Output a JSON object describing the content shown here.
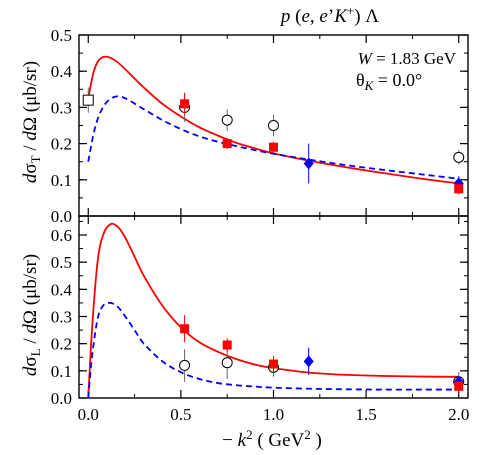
{
  "chart_data": {
    "type": "line",
    "title": "p (e, e'K⁺) Λ",
    "xlabel": "−k² ( GeV² )",
    "xlim": [
      -0.05,
      2.05
    ],
    "xticks": [
      "0.0",
      "0.5",
      "1.0",
      "1.5",
      "2.0"
    ],
    "annotations": [
      "W = 1.83 GeV",
      "θK = 0.0°"
    ],
    "panels": [
      {
        "id": "sigma_T",
        "ylabel": "dσT / dΩ (μb/sr)",
        "ylim": [
          0.0,
          0.5
        ],
        "yticks": [
          "0.0",
          "0.1",
          "0.2",
          "0.3",
          "0.4",
          "0.5"
        ],
        "curves": [
          {
            "style": "solid",
            "color": "#ff0000",
            "x": [
              0.0,
              0.03,
              0.06,
              0.1,
              0.15,
              0.2,
              0.3,
              0.4,
              0.5,
              0.6,
              0.7,
              0.8,
              0.9,
              1.0,
              1.2,
              1.4,
              1.6,
              1.8,
              2.0
            ],
            "y": [
              0.325,
              0.4,
              0.432,
              0.44,
              0.428,
              0.405,
              0.355,
              0.31,
              0.275,
              0.245,
              0.222,
              0.202,
              0.187,
              0.173,
              0.152,
              0.134,
              0.118,
              0.103,
              0.09
            ]
          },
          {
            "style": "dashed",
            "color": "#0000ff",
            "x": [
              0.0,
              0.03,
              0.06,
              0.1,
              0.15,
              0.2,
              0.3,
              0.4,
              0.5,
              0.6,
              0.7,
              0.8,
              0.9,
              1.0,
              1.2,
              1.4,
              1.6,
              1.8,
              2.0
            ],
            "y": [
              0.15,
              0.23,
              0.28,
              0.315,
              0.33,
              0.325,
              0.295,
              0.265,
              0.24,
              0.22,
              0.205,
              0.193,
              0.182,
              0.172,
              0.155,
              0.14,
              0.127,
              0.115,
              0.103
            ]
          }
        ],
        "points": [
          {
            "marker": "open-square",
            "color": "#000000",
            "x": 0.0,
            "y": 0.32,
            "err": 0.035
          },
          {
            "marker": "open-circle",
            "color": "#000000",
            "x": 0.52,
            "y": 0.3,
            "err": 0.04
          },
          {
            "marker": "filled-square",
            "color": "#ff0000",
            "x": 0.52,
            "y": 0.31,
            "err": 0.03
          },
          {
            "marker": "open-circle",
            "color": "#000000",
            "x": 0.75,
            "y": 0.265,
            "err": 0.03
          },
          {
            "marker": "filled-square",
            "color": "#ff0000",
            "x": 0.75,
            "y": 0.2,
            "err": 0.015
          },
          {
            "marker": "open-circle",
            "color": "#000000",
            "x": 1.0,
            "y": 0.25,
            "err": 0.03
          },
          {
            "marker": "filled-square",
            "color": "#ff0000",
            "x": 1.0,
            "y": 0.19,
            "err": 0.015
          },
          {
            "marker": "filled-diamond",
            "color": "#0000ff",
            "x": 1.19,
            "y": 0.145,
            "err": 0.055
          },
          {
            "marker": "open-circle",
            "color": "#000000",
            "x": 2.0,
            "y": 0.162,
            "err": 0.02
          },
          {
            "marker": "filled-diamond",
            "color": "#0000ff",
            "x": 2.0,
            "y": 0.09,
            "err": 0.02
          },
          {
            "marker": "filled-square",
            "color": "#ff0000",
            "x": 2.0,
            "y": 0.075,
            "err": 0.015
          }
        ]
      },
      {
        "id": "sigma_L",
        "ylabel": "dσL / dΩ (μb/sr)",
        "ylim": [
          0.0,
          0.67
        ],
        "yticks": [
          "0.0",
          "0.1",
          "0.2",
          "0.3",
          "0.4",
          "0.5",
          "0.6"
        ],
        "curves": [
          {
            "style": "solid",
            "color": "#ff0000",
            "x": [
              0.0,
              0.02,
              0.05,
              0.08,
              0.12,
              0.16,
              0.2,
              0.25,
              0.3,
              0.4,
              0.5,
              0.6,
              0.7,
              0.8,
              0.9,
              1.0,
              1.2,
              1.4,
              1.6,
              1.8,
              2.0
            ],
            "y": [
              0.0,
              0.25,
              0.5,
              0.6,
              0.64,
              0.63,
              0.59,
              0.52,
              0.45,
              0.34,
              0.26,
              0.205,
              0.17,
              0.143,
              0.123,
              0.11,
              0.093,
              0.085,
              0.081,
              0.079,
              0.078
            ]
          },
          {
            "style": "dashed",
            "color": "#0000ff",
            "x": [
              0.0,
              0.02,
              0.05,
              0.08,
              0.12,
              0.16,
              0.2,
              0.25,
              0.3,
              0.4,
              0.5,
              0.6,
              0.7,
              0.8,
              0.9,
              1.0,
              1.2,
              1.4,
              1.6,
              1.8,
              2.0
            ],
            "y": [
              0.0,
              0.15,
              0.29,
              0.34,
              0.35,
              0.335,
              0.3,
              0.25,
              0.2,
              0.135,
              0.095,
              0.07,
              0.055,
              0.047,
              0.042,
              0.038,
              0.034,
              0.032,
              0.031,
              0.031,
              0.031
            ]
          }
        ],
        "points": [
          {
            "marker": "open-circle",
            "color": "#000000",
            "x": 0.52,
            "y": 0.12,
            "err": 0.06
          },
          {
            "marker": "filled-square",
            "color": "#ff0000",
            "x": 0.52,
            "y": 0.255,
            "err": 0.05
          },
          {
            "marker": "open-circle",
            "color": "#000000",
            "x": 0.75,
            "y": 0.13,
            "err": 0.06
          },
          {
            "marker": "filled-square",
            "color": "#ff0000",
            "x": 0.75,
            "y": 0.195,
            "err": 0.025
          },
          {
            "marker": "open-circle",
            "color": "#000000",
            "x": 1.0,
            "y": 0.113,
            "err": 0.035
          },
          {
            "marker": "filled-square",
            "color": "#ff0000",
            "x": 1.0,
            "y": 0.125,
            "err": 0.03
          },
          {
            "marker": "filled-diamond",
            "color": "#0000ff",
            "x": 1.19,
            "y": 0.135,
            "err": 0.05
          },
          {
            "marker": "open-circle",
            "color": "#000000",
            "x": 2.0,
            "y": 0.06,
            "err": 0.035
          },
          {
            "marker": "filled-diamond",
            "color": "#0000ff",
            "x": 2.0,
            "y": 0.06,
            "err": 0.02
          },
          {
            "marker": "filled-square",
            "color": "#ff0000",
            "x": 2.0,
            "y": 0.043,
            "err": 0.02
          }
        ]
      }
    ]
  }
}
